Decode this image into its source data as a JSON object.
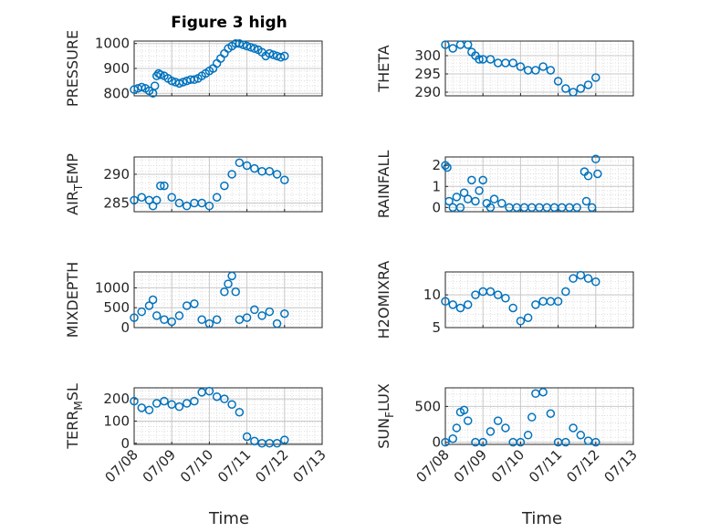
{
  "figure": {
    "title": "Figure 3 high",
    "marker_color": "#0072BD",
    "xlabel": "Time",
    "xticks": [
      "07/08",
      "07/09",
      "07/10",
      "07/11",
      "07/12",
      "07/13"
    ],
    "grid": "on (major + minor dotted)"
  },
  "chart_data": [
    {
      "type": "scatter",
      "ylabel": "PRESSURE",
      "ylim": [
        790,
        1010
      ],
      "yticks": [
        800,
        900,
        1000
      ],
      "xlim": [
        0,
        5
      ],
      "title": "Figure 3 high",
      "series": [
        {
          "x": [
            0,
            0.1,
            0.2,
            0.3,
            0.4,
            0.5,
            0.55,
            0.6,
            0.65,
            0.7,
            0.8,
            0.9,
            1.0,
            1.1,
            1.2,
            1.3,
            1.4,
            1.5,
            1.6,
            1.7,
            1.8,
            1.9,
            2.0,
            2.1,
            2.2,
            2.3,
            2.4,
            2.5,
            2.6,
            2.7,
            2.8,
            2.9,
            3.0,
            3.1,
            3.2,
            3.3,
            3.4,
            3.5,
            3.6,
            3.7,
            3.8,
            3.9,
            4.0
          ],
          "y": [
            815,
            820,
            825,
            820,
            810,
            800,
            830,
            870,
            880,
            875,
            870,
            860,
            850,
            845,
            840,
            845,
            850,
            855,
            855,
            860,
            870,
            880,
            890,
            900,
            920,
            940,
            960,
            980,
            990,
            1000,
            1000,
            995,
            990,
            985,
            980,
            975,
            965,
            950,
            960,
            955,
            950,
            945,
            950
          ]
        }
      ]
    },
    {
      "type": "scatter",
      "ylabel": "THETA",
      "ylim": [
        289,
        304
      ],
      "yticks": [
        290,
        295,
        300
      ],
      "xlim": [
        0,
        5
      ],
      "series": [
        {
          "x": [
            0,
            0.2,
            0.4,
            0.6,
            0.7,
            0.8,
            0.9,
            1.0,
            1.2,
            1.4,
            1.6,
            1.8,
            2.0,
            2.2,
            2.4,
            2.6,
            2.8,
            3.0,
            3.2,
            3.4,
            3.6,
            3.8,
            4.0
          ],
          "y": [
            303,
            302,
            303,
            303,
            301,
            300,
            299,
            299,
            299,
            298,
            298,
            298,
            297,
            296,
            296,
            297,
            296,
            293,
            291,
            290,
            291,
            292,
            294
          ]
        }
      ]
    },
    {
      "type": "scatter",
      "ylabel": "AIR_TEMP",
      "ylim": [
        283.5,
        293
      ],
      "yticks": [
        285,
        290
      ],
      "xlim": [
        0,
        5
      ],
      "series": [
        {
          "x": [
            0,
            0.2,
            0.4,
            0.5,
            0.6,
            0.7,
            0.8,
            1.0,
            1.2,
            1.4,
            1.6,
            1.8,
            2.0,
            2.2,
            2.4,
            2.6,
            2.8,
            3.0,
            3.2,
            3.4,
            3.6,
            3.8,
            4.0
          ],
          "y": [
            285.5,
            286,
            285.5,
            284.5,
            285.5,
            288,
            288,
            286,
            285,
            284.5,
            285,
            285,
            284.5,
            286,
            288,
            290,
            292,
            291.5,
            291,
            290.5,
            290.5,
            290,
            289
          ]
        }
      ]
    },
    {
      "type": "scatter",
      "ylabel": "RAINFALL",
      "ylim": [
        -0.2,
        2.4
      ],
      "yticks": [
        0,
        1,
        2
      ],
      "xlim": [
        0,
        5
      ],
      "series": [
        {
          "x": [
            0,
            0.05,
            0.1,
            0.2,
            0.3,
            0.4,
            0.5,
            0.6,
            0.7,
            0.8,
            0.9,
            1.0,
            1.1,
            1.2,
            1.3,
            1.5,
            1.7,
            1.9,
            2.1,
            2.3,
            2.5,
            2.7,
            2.9,
            3.1,
            3.3,
            3.5,
            3.7,
            3.75,
            3.8,
            3.9,
            4.0,
            4.05
          ],
          "y": [
            2,
            1.9,
            0.3,
            0,
            0.5,
            0,
            0.7,
            0.4,
            1.3,
            0.3,
            0.8,
            1.3,
            0.2,
            0,
            0.4,
            0.2,
            0,
            0,
            0,
            0,
            0,
            0,
            0,
            0,
            0,
            0,
            1.7,
            0.3,
            1.5,
            0,
            2.3,
            1.6
          ]
        }
      ]
    },
    {
      "type": "scatter",
      "ylabel": "MIXDEPTH",
      "ylim": [
        0,
        1400
      ],
      "yticks": [
        0,
        500,
        1000
      ],
      "xlim": [
        0,
        5
      ],
      "series": [
        {
          "x": [
            0,
            0.2,
            0.4,
            0.5,
            0.6,
            0.8,
            1.0,
            1.2,
            1.4,
            1.6,
            1.8,
            2.0,
            2.2,
            2.4,
            2.5,
            2.6,
            2.7,
            2.8,
            3.0,
            3.2,
            3.4,
            3.6,
            3.8,
            4.0
          ],
          "y": [
            250,
            400,
            550,
            700,
            300,
            200,
            150,
            300,
            550,
            600,
            200,
            100,
            200,
            900,
            1100,
            1300,
            900,
            200,
            250,
            450,
            300,
            400,
            100,
            350
          ]
        }
      ]
    },
    {
      "type": "scatter",
      "ylabel": "H2OMIXRA",
      "ylim": [
        5,
        13.5
      ],
      "yticks": [
        5,
        10
      ],
      "xlim": [
        0,
        5
      ],
      "series": [
        {
          "x": [
            0,
            0.2,
            0.4,
            0.6,
            0.8,
            1.0,
            1.2,
            1.4,
            1.6,
            1.8,
            2.0,
            2.2,
            2.4,
            2.6,
            2.8,
            3.0,
            3.2,
            3.4,
            3.6,
            3.8,
            4.0
          ],
          "y": [
            9,
            8.5,
            8,
            8.5,
            10,
            10.5,
            10.5,
            10,
            9.5,
            8,
            6,
            6.5,
            8.5,
            9,
            9,
            9,
            10.5,
            12.5,
            13,
            12.5,
            12
          ]
        }
      ]
    },
    {
      "type": "scatter",
      "ylabel": "TERR_MSL",
      "ylim": [
        -5,
        250
      ],
      "yticks": [
        0,
        100,
        200
      ],
      "xlim": [
        0,
        5
      ],
      "series": [
        {
          "x": [
            0,
            0.2,
            0.4,
            0.6,
            0.8,
            1.0,
            1.2,
            1.4,
            1.6,
            1.8,
            2.0,
            2.2,
            2.4,
            2.6,
            2.8,
            3.0,
            3.2,
            3.4,
            3.6,
            3.8,
            4.0
          ],
          "y": [
            190,
            160,
            150,
            180,
            190,
            175,
            165,
            180,
            190,
            230,
            235,
            210,
            200,
            175,
            140,
            30,
            10,
            0,
            0,
            0,
            15
          ]
        }
      ]
    },
    {
      "type": "scatter",
      "ylabel": "SUN_FLUX",
      "ylim": [
        -30,
        760
      ],
      "yticks": [
        0,
        500
      ],
      "xlim": [
        0,
        5
      ],
      "series": [
        {
          "x": [
            0,
            0.2,
            0.3,
            0.4,
            0.5,
            0.6,
            0.8,
            1.0,
            1.2,
            1.4,
            1.6,
            1.8,
            2.0,
            2.2,
            2.3,
            2.4,
            2.6,
            2.8,
            3.0,
            3.2,
            3.4,
            3.6,
            3.8,
            4.0
          ],
          "y": [
            0,
            50,
            200,
            420,
            450,
            300,
            0,
            0,
            150,
            300,
            200,
            0,
            0,
            100,
            350,
            680,
            700,
            400,
            0,
            0,
            200,
            100,
            20,
            0
          ]
        }
      ]
    }
  ]
}
